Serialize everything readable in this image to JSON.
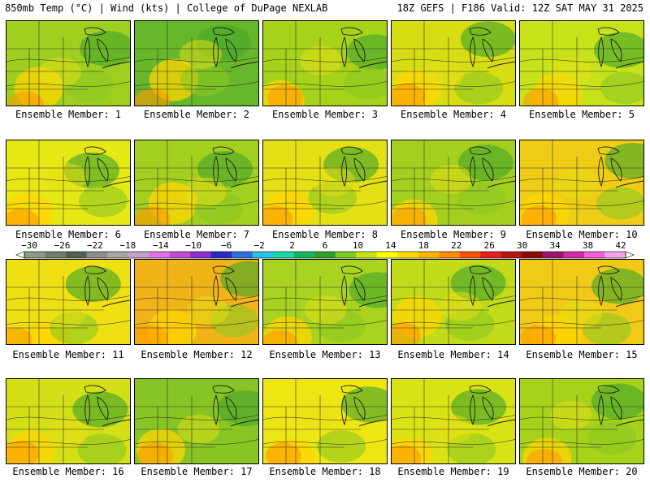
{
  "header": {
    "left": "850mb Temp (°C) | Wind (kts) | College of DuPage NEXLAB",
    "right": "18Z GEFS | F186 Valid: 12Z SAT MAY 31 2025"
  },
  "panels": [
    {
      "label": "Ensemble Member: 1",
      "tint": "#9ecf1f"
    },
    {
      "label": "Ensemble Member: 2",
      "tint": "#66b82a"
    },
    {
      "label": "Ensemble Member: 3",
      "tint": "#a6d21a"
    },
    {
      "label": "Ensemble Member: 4",
      "tint": "#d7dd13"
    },
    {
      "label": "Ensemble Member: 5",
      "tint": "#c8e21a"
    },
    {
      "label": "Ensemble Member: 6",
      "tint": "#e6e814"
    },
    {
      "label": "Ensemble Member: 7",
      "tint": "#a3cf1f"
    },
    {
      "label": "Ensemble Member: 8",
      "tint": "#e5e014"
    },
    {
      "label": "Ensemble Member: 9",
      "tint": "#a5cf1f"
    },
    {
      "label": "Ensemble Member: 10",
      "tint": "#efcd16"
    },
    {
      "label": "Ensemble Member: 11",
      "tint": "#eee013"
    },
    {
      "label": "Ensemble Member: 12",
      "tint": "#f0b318"
    },
    {
      "label": "Ensemble Member: 13",
      "tint": "#a9d320"
    },
    {
      "label": "Ensemble Member: 14",
      "tint": "#c1da1a"
    },
    {
      "label": "Ensemble Member: 15",
      "tint": "#f0ca16"
    },
    {
      "label": "Ensemble Member: 16",
      "tint": "#d4df16"
    },
    {
      "label": "Ensemble Member: 17",
      "tint": "#87c424"
    },
    {
      "label": "Ensemble Member: 18",
      "tint": "#eee613"
    },
    {
      "label": "Ensemble Member: 19",
      "tint": "#d9e314"
    },
    {
      "label": "Ensemble Member: 20",
      "tint": "#a6d21a"
    }
  ],
  "colorbar": {
    "ticks": [
      "−30",
      "−26",
      "−22",
      "−18",
      "−14",
      "−10",
      "−6",
      "−2",
      "2",
      "6",
      "10",
      "14",
      "18",
      "22",
      "26",
      "30",
      "34",
      "38",
      "42"
    ],
    "colors": [
      "#8a9a8a",
      "#6e7e6e",
      "#556055",
      "#8c8c8c",
      "#a6a6a6",
      "#c2a0c8",
      "#e36fe6",
      "#c44ad1",
      "#8a2fd0",
      "#2b2bc0",
      "#2e6fd8",
      "#22c5e2",
      "#19d7a6",
      "#14b85c",
      "#2ea02e",
      "#7ccc22",
      "#c7e418",
      "#ffff00",
      "#ffdb00",
      "#ffb400",
      "#ff8c00",
      "#ff5000",
      "#e51e1e",
      "#b81414",
      "#8c0a0a",
      "#a0146e",
      "#d22aa6",
      "#ef5fd6",
      "#f3a3e8"
    ]
  }
}
